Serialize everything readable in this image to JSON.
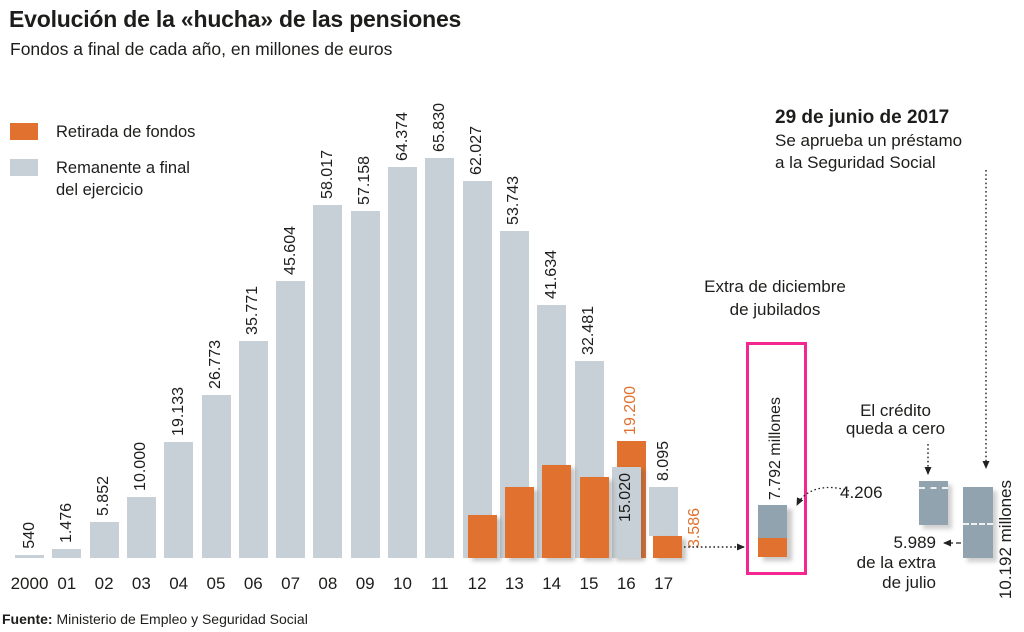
{
  "title": "Evolución de la «hucha» de las pensiones",
  "subtitle": "Fondos a final de cada año, en millones de euros",
  "colors": {
    "orange": "#e0712e",
    "gray": "#c7d0d6",
    "slate": "#91a3ae",
    "pink": "#f3278f",
    "text": "#1d1d1b"
  },
  "legend": {
    "retirada_label": "Retirada de fondos",
    "remanente_line1": "Remanente a final",
    "remanente_line2": "del ejercicio"
  },
  "chart_data": {
    "type": "bar",
    "title": "Evolución de la «hucha» de las pensiones",
    "unit": "millones de euros",
    "ylim": [
      0,
      65830
    ],
    "grid": false,
    "categories": [
      "2000",
      "01",
      "02",
      "03",
      "04",
      "05",
      "06",
      "07",
      "08",
      "09",
      "10",
      "11",
      "12",
      "13",
      "14",
      "15",
      "16",
      "17"
    ],
    "series": [
      {
        "name": "Remanente a final del ejercicio",
        "values": [
          540,
          1476,
          5852,
          10000,
          19133,
          26773,
          35771,
          45604,
          58017,
          57158,
          64374,
          65830,
          62027,
          53743,
          41634,
          32481,
          15020,
          8095
        ],
        "labels": [
          "540",
          "1.476",
          "5.852",
          "10.000",
          "19.133",
          "26.773",
          "35.771",
          "45.604",
          "58.017",
          "57.158",
          "64.374",
          "65.830",
          "62.027",
          "53.743",
          "41.634",
          "32.481",
          "15.020",
          "8.095"
        ]
      },
      {
        "name": "Retirada de fondos",
        "values": [
          null,
          null,
          null,
          null,
          null,
          null,
          null,
          null,
          null,
          null,
          null,
          null,
          7003,
          11648,
          15300,
          13250,
          19200,
          3586
        ],
        "labels": [
          null,
          null,
          null,
          null,
          null,
          null,
          null,
          null,
          null,
          null,
          null,
          null,
          "7.003",
          "11.648",
          "15.300",
          "13.250",
          "19.200",
          "3.586"
        ],
        "display": [
          null,
          null,
          null,
          null,
          null,
          null,
          null,
          null,
          null,
          null,
          null,
          null,
          "overlay",
          "overlay",
          "overlay",
          "overlay",
          "behind",
          "stacked"
        ]
      }
    ]
  },
  "annotations": {
    "extra_box": {
      "line1": "Extra de diciembre",
      "line2": "de jubilados",
      "total_label": "7.792 millones",
      "gray_label": "4.206",
      "gray_value": 4206,
      "orange_value": 3586
    },
    "loan_note": {
      "line1": "29 de junio de 2017",
      "line2": "Se aprueba un préstamo",
      "line3": "a la Seguridad Social"
    },
    "credit_note": {
      "line1": "El crédito",
      "line2": "queda a cero"
    },
    "july_note": {
      "line1": "5.989",
      "line2": "de la extra",
      "line3": "de julio"
    },
    "loan_total_label": "10.192 millones"
  },
  "source": {
    "label": "Fuente:",
    "text": " Ministerio de Empleo y Seguridad Social"
  }
}
